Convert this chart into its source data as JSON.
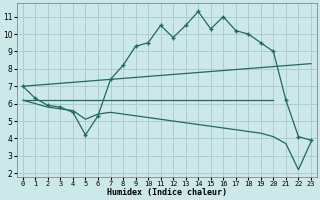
{
  "bg_color": "#cce8e8",
  "grid_color": "#aacfcf",
  "line_color": "#1e6b5e",
  "xlabel": "Humidex (Indice chaleur)",
  "xlim": [
    -0.5,
    23.5
  ],
  "ylim": [
    1.8,
    11.8
  ],
  "xticks": [
    0,
    1,
    2,
    3,
    4,
    5,
    6,
    7,
    8,
    9,
    10,
    11,
    12,
    13,
    14,
    15,
    16,
    17,
    18,
    19,
    20,
    21,
    22,
    23
  ],
  "yticks": [
    2,
    3,
    4,
    5,
    6,
    7,
    8,
    9,
    10,
    11
  ],
  "series": [
    {
      "x": [
        0,
        1,
        2,
        3,
        4,
        5,
        6,
        7,
        8,
        9,
        10,
        11,
        12,
        13,
        14,
        15,
        16,
        17,
        18,
        19,
        20,
        21,
        22,
        23
      ],
      "y": [
        7.0,
        6.3,
        5.9,
        5.8,
        5.5,
        4.2,
        5.3,
        7.4,
        8.2,
        9.3,
        9.5,
        10.5,
        9.8,
        10.5,
        11.3,
        10.3,
        11.0,
        10.2,
        10.0,
        9.5,
        9.0,
        6.2,
        4.1,
        3.9
      ],
      "marker": true
    },
    {
      "x": [
        0,
        23
      ],
      "y": [
        7.0,
        8.3
      ],
      "marker": false
    },
    {
      "x": [
        0,
        20
      ],
      "y": [
        6.2,
        6.2
      ],
      "marker": false
    },
    {
      "x": [
        0,
        1,
        2,
        3,
        4,
        5,
        6,
        7,
        8,
        9,
        10,
        11,
        12,
        13,
        14,
        15,
        16,
        17,
        18,
        19,
        20,
        21,
        22,
        23
      ],
      "y": [
        6.2,
        6.0,
        5.8,
        5.7,
        5.6,
        5.1,
        5.4,
        5.5,
        5.4,
        5.3,
        5.2,
        5.1,
        5.0,
        4.9,
        4.8,
        4.7,
        4.6,
        4.5,
        4.4,
        4.3,
        4.1,
        3.7,
        2.2,
        3.8
      ],
      "marker": false
    }
  ]
}
